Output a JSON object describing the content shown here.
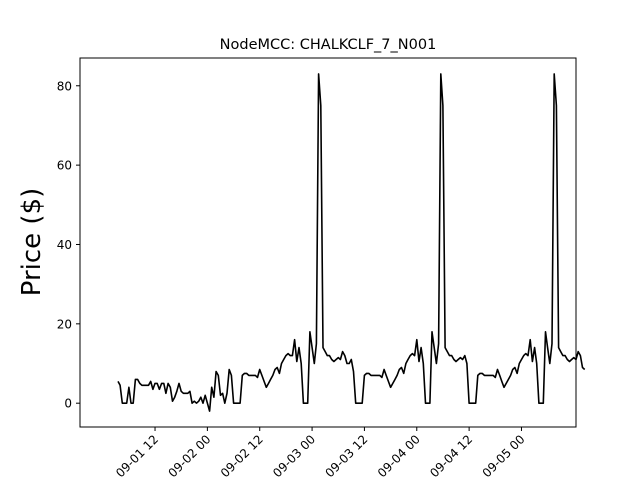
{
  "chart_data": {
    "type": "line",
    "title": "NodeMCC: CHALKCLF_7_N001",
    "xlabel": "",
    "ylabel": "Price ($)",
    "x_ticks": [
      {
        "label": "09-01 12",
        "hour": 12
      },
      {
        "label": "09-02 00",
        "hour": 24
      },
      {
        "label": "09-02 12",
        "hour": 36
      },
      {
        "label": "09-03 00",
        "hour": 48
      },
      {
        "label": "09-03 12",
        "hour": 60
      },
      {
        "label": "09-04 00",
        "hour": 72
      },
      {
        "label": "09-04 12",
        "hour": 84
      },
      {
        "label": "09-05 00",
        "hour": 96
      }
    ],
    "y_ticks": [
      0,
      20,
      40,
      60,
      80
    ],
    "xlim_hours": [
      -5.2,
      108.5
    ],
    "ylim": [
      -6,
      87
    ],
    "grid": false,
    "series": [
      {
        "color": "#000000",
        "points": [
          [
            3.5,
            5.5
          ],
          [
            4.0,
            4.5
          ],
          [
            4.5,
            0
          ],
          [
            5.0,
            0
          ],
          [
            5.5,
            0
          ],
          [
            6.0,
            4
          ],
          [
            6.5,
            0
          ],
          [
            7.0,
            0
          ],
          [
            7.5,
            6
          ],
          [
            8.0,
            6
          ],
          [
            8.5,
            5
          ],
          [
            9.0,
            4.5
          ],
          [
            9.5,
            4.5
          ],
          [
            10.0,
            4.5
          ],
          [
            10.5,
            4.5
          ],
          [
            11.0,
            5.5
          ],
          [
            11.5,
            3.5
          ],
          [
            12.0,
            5
          ],
          [
            12.5,
            5
          ],
          [
            13.0,
            3.5
          ],
          [
            13.5,
            5
          ],
          [
            14.0,
            5
          ],
          [
            14.5,
            2.5
          ],
          [
            15.0,
            5
          ],
          [
            15.5,
            4
          ],
          [
            16.0,
            0.5
          ],
          [
            16.5,
            1.5
          ],
          [
            17.0,
            3
          ],
          [
            17.5,
            5
          ],
          [
            18.0,
            3
          ],
          [
            18.5,
            2.5
          ],
          [
            19.0,
            2.5
          ],
          [
            19.5,
            2.5
          ],
          [
            20.0,
            3
          ],
          [
            20.5,
            0
          ],
          [
            21.0,
            0.5
          ],
          [
            21.5,
            0
          ],
          [
            22.0,
            0.5
          ],
          [
            22.5,
            1.5
          ],
          [
            23.0,
            0
          ],
          [
            23.5,
            2
          ],
          [
            24.0,
            0
          ],
          [
            24.5,
            -2
          ],
          [
            25.0,
            4
          ],
          [
            25.5,
            1.5
          ],
          [
            26.0,
            8
          ],
          [
            26.5,
            7
          ],
          [
            27.0,
            2
          ],
          [
            27.5,
            2.5
          ],
          [
            28.0,
            0
          ],
          [
            28.5,
            2.5
          ],
          [
            29.0,
            8.5
          ],
          [
            29.5,
            7
          ],
          [
            30.0,
            0
          ],
          [
            30.5,
            0
          ],
          [
            31.0,
            0
          ],
          [
            31.5,
            0
          ],
          [
            32.0,
            7
          ],
          [
            32.5,
            7.5
          ],
          [
            33.0,
            7.5
          ],
          [
            33.5,
            7
          ],
          [
            34.0,
            7
          ],
          [
            34.5,
            7
          ],
          [
            35.0,
            7
          ],
          [
            35.5,
            6.5
          ],
          [
            36.0,
            8.5
          ],
          [
            36.5,
            7
          ],
          [
            37.0,
            5.5
          ],
          [
            37.5,
            4
          ],
          [
            38.0,
            5
          ],
          [
            38.5,
            6
          ],
          [
            39.0,
            7
          ],
          [
            39.5,
            8.5
          ],
          [
            40.0,
            9
          ],
          [
            40.5,
            7.5
          ],
          [
            41.0,
            10
          ],
          [
            41.5,
            11
          ],
          [
            42.0,
            12
          ],
          [
            42.5,
            12.5
          ],
          [
            43.0,
            12
          ],
          [
            43.5,
            12
          ],
          [
            44.0,
            16
          ],
          [
            44.5,
            10.5
          ],
          [
            45.0,
            14
          ],
          [
            45.5,
            10
          ],
          [
            46.0,
            0
          ],
          [
            46.5,
            0
          ],
          [
            47.0,
            0
          ],
          [
            47.5,
            18
          ],
          [
            48.0,
            14
          ],
          [
            48.5,
            10
          ],
          [
            49.0,
            15
          ],
          [
            49.5,
            83
          ],
          [
            50.0,
            75
          ],
          [
            50.5,
            14
          ],
          [
            51.0,
            13
          ],
          [
            51.5,
            12
          ],
          [
            52.0,
            12
          ],
          [
            52.5,
            11
          ],
          [
            53.0,
            10.5
          ],
          [
            53.5,
            11
          ],
          [
            54.0,
            11.5
          ],
          [
            54.5,
            11
          ],
          [
            55.0,
            13
          ],
          [
            55.5,
            12
          ],
          [
            56.0,
            10
          ],
          [
            56.5,
            10
          ],
          [
            57.0,
            11
          ],
          [
            57.5,
            8
          ],
          [
            58.0,
            0
          ],
          [
            58.5,
            0
          ],
          [
            59.0,
            0
          ],
          [
            59.5,
            0
          ],
          [
            60.0,
            7
          ],
          [
            60.5,
            7.5
          ],
          [
            61.0,
            7.5
          ],
          [
            61.5,
            7
          ],
          [
            62.0,
            7
          ],
          [
            62.5,
            7
          ],
          [
            63.0,
            7
          ],
          [
            63.5,
            7
          ],
          [
            64.0,
            6.5
          ],
          [
            64.5,
            8.5
          ],
          [
            65.0,
            7
          ],
          [
            65.5,
            5.5
          ],
          [
            66.0,
            4
          ],
          [
            66.5,
            5
          ],
          [
            67.0,
            6
          ],
          [
            67.5,
            7
          ],
          [
            68.0,
            8.5
          ],
          [
            68.5,
            9
          ],
          [
            69.0,
            7.5
          ],
          [
            69.5,
            10
          ],
          [
            70.0,
            11
          ],
          [
            70.5,
            12
          ],
          [
            71.0,
            12.5
          ],
          [
            71.5,
            12
          ],
          [
            72.0,
            16
          ],
          [
            72.5,
            10.5
          ],
          [
            73.0,
            14
          ],
          [
            73.5,
            10
          ],
          [
            74.0,
            0
          ],
          [
            74.5,
            0
          ],
          [
            75.0,
            0
          ],
          [
            75.5,
            18
          ],
          [
            76.0,
            14
          ],
          [
            76.5,
            10
          ],
          [
            77.0,
            15
          ],
          [
            77.5,
            83
          ],
          [
            78.0,
            75
          ],
          [
            78.5,
            14
          ],
          [
            79.0,
            13
          ],
          [
            79.5,
            12
          ],
          [
            80.0,
            12
          ],
          [
            80.5,
            11
          ],
          [
            81.0,
            10.5
          ],
          [
            81.5,
            11
          ],
          [
            82.0,
            11.5
          ],
          [
            82.5,
            11
          ],
          [
            83.0,
            12
          ],
          [
            83.5,
            10
          ],
          [
            84.0,
            0
          ],
          [
            84.5,
            0
          ],
          [
            85.0,
            0
          ],
          [
            85.5,
            0
          ],
          [
            86.0,
            7
          ],
          [
            86.5,
            7.5
          ],
          [
            87.0,
            7.5
          ],
          [
            87.5,
            7
          ],
          [
            88.0,
            7
          ],
          [
            88.5,
            7
          ],
          [
            89.0,
            7
          ],
          [
            89.5,
            7
          ],
          [
            90.0,
            6.5
          ],
          [
            90.5,
            8.5
          ],
          [
            91.0,
            7
          ],
          [
            91.5,
            5.5
          ],
          [
            92.0,
            4
          ],
          [
            92.5,
            5
          ],
          [
            93.0,
            6
          ],
          [
            93.5,
            7
          ],
          [
            94.0,
            8.5
          ],
          [
            94.5,
            9
          ],
          [
            95.0,
            7.5
          ],
          [
            95.5,
            10
          ],
          [
            96.0,
            11
          ],
          [
            96.5,
            12
          ],
          [
            97.0,
            12.5
          ],
          [
            97.5,
            12
          ],
          [
            98.0,
            16
          ],
          [
            98.5,
            10.5
          ],
          [
            99.0,
            14
          ],
          [
            99.5,
            10
          ],
          [
            100.0,
            0
          ],
          [
            100.5,
            0
          ],
          [
            101.0,
            0
          ],
          [
            101.5,
            18
          ],
          [
            102.0,
            14
          ],
          [
            102.5,
            10
          ],
          [
            103.0,
            15
          ],
          [
            103.5,
            83
          ],
          [
            104.0,
            75
          ],
          [
            104.5,
            14
          ],
          [
            105.0,
            13
          ],
          [
            105.5,
            12
          ],
          [
            106.0,
            12
          ],
          [
            106.5,
            11
          ],
          [
            107.0,
            10.5
          ],
          [
            107.5,
            11
          ],
          [
            108.0,
            11.5
          ],
          [
            108.5,
            11
          ],
          [
            109.0,
            13
          ],
          [
            109.5,
            12
          ],
          [
            110.0,
            9
          ],
          [
            110.5,
            8.5
          ]
        ]
      }
    ]
  }
}
